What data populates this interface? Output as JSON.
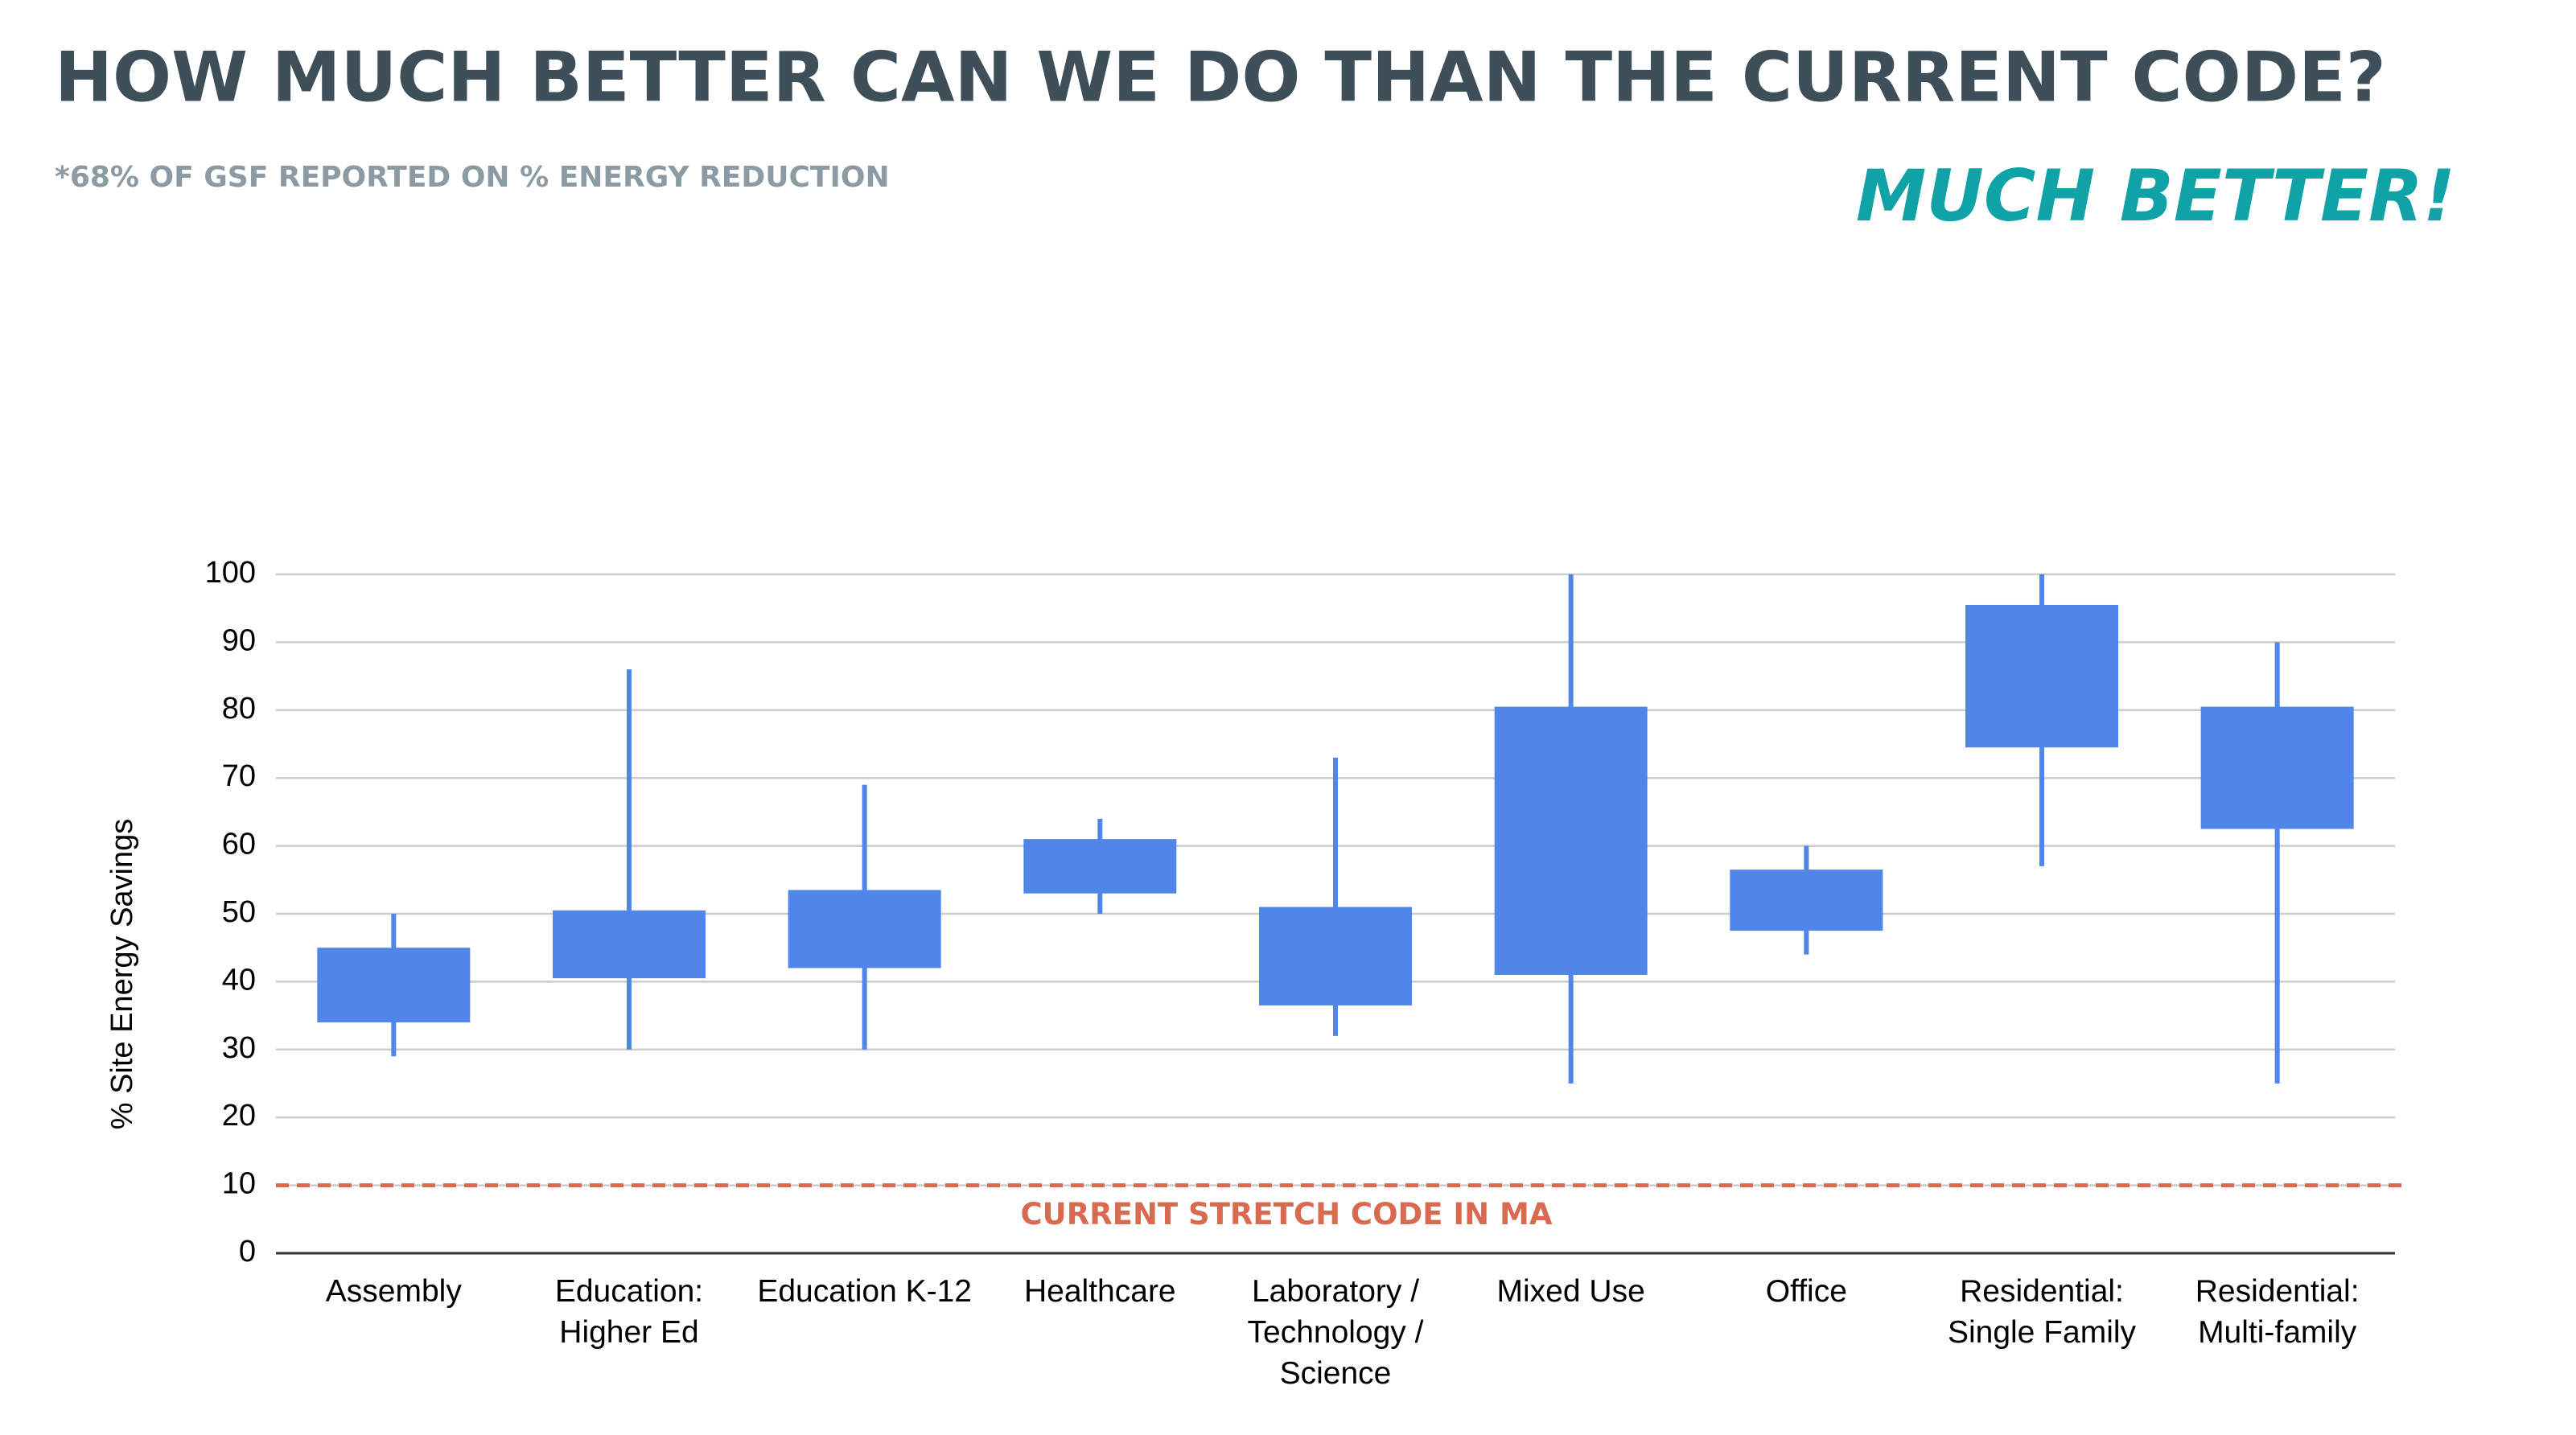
{
  "chart_data": {
    "type": "candlestick",
    "title": "HOW MUCH BETTER CAN WE DO THAN THE CURRENT CODE?",
    "subtitle": "*68%  OF GSF REPORTED ON % ENERGY REDUCTION",
    "annotation": "MUCH BETTER!",
    "y_label": "% Site Energy Savings",
    "categories": [
      "Assembly",
      "Education: Higher Ed",
      "Education K-12",
      "Healthcare",
      "Laboratory / Technology / Science",
      "Mixed Use",
      "Office",
      "Residential: Single Family",
      "Residential: Multi-family"
    ],
    "low": [
      29,
      30,
      30,
      50,
      32,
      25,
      44,
      57,
      25
    ],
    "q1": [
      34,
      40.5,
      42,
      53,
      36.5,
      41,
      47.5,
      74.5,
      62.5
    ],
    "q3": [
      45,
      50.5,
      53.5,
      61,
      51,
      80.5,
      56.5,
      95.5,
      80.5
    ],
    "high": [
      50,
      86,
      69,
      64,
      73,
      100,
      60,
      100,
      90
    ],
    "color": "#5086e8",
    "ylim": [
      0,
      100
    ],
    "yticks": [
      0,
      10,
      20,
      30,
      40,
      50,
      60,
      70,
      80,
      90,
      100
    ],
    "grid": true,
    "reference_line": {
      "value": 10,
      "label": "CURRENT STRETCH CODE IN MA",
      "color": "#d9694f"
    }
  }
}
